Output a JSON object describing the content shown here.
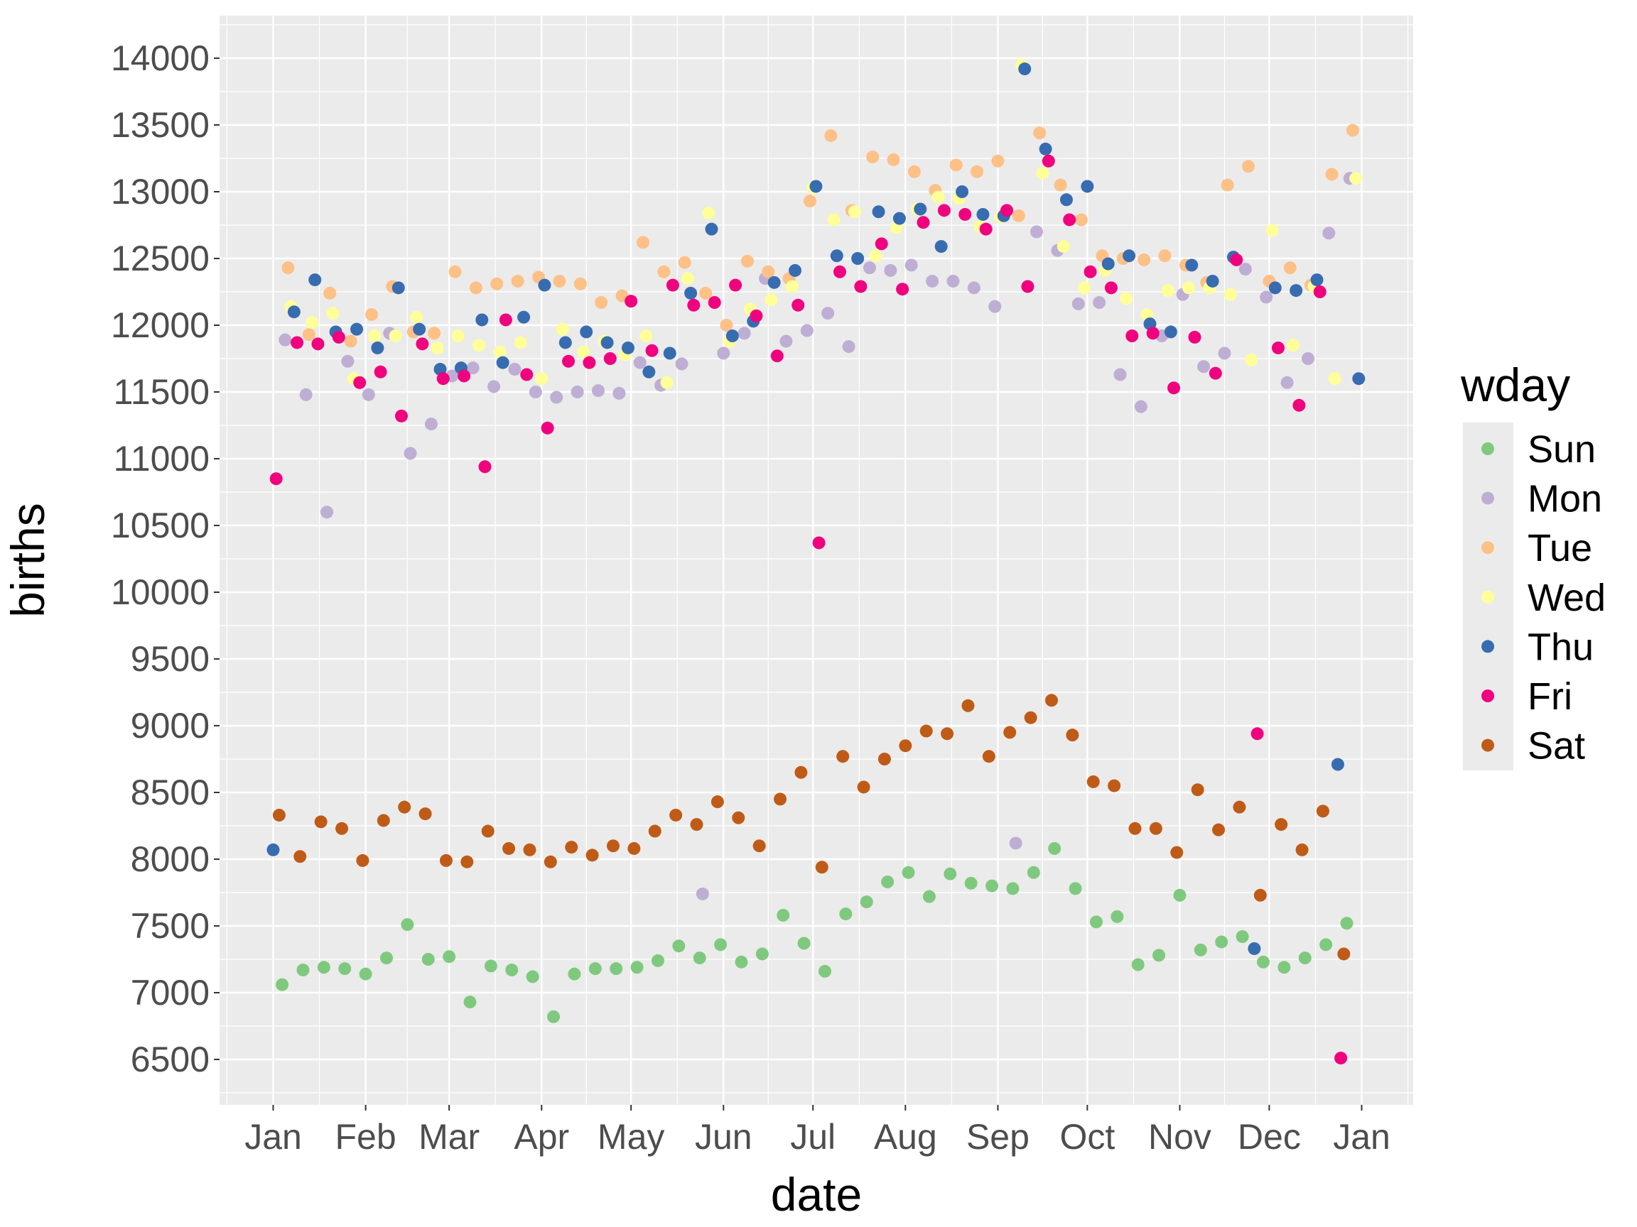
{
  "chart_data": {
    "type": "scatter",
    "title": "",
    "xlabel": "date",
    "ylabel": "births",
    "ylim": [
      6160,
      14320
    ],
    "y_ticks": [
      6500,
      7000,
      7500,
      8000,
      8500,
      9000,
      9500,
      10000,
      10500,
      11000,
      11500,
      12000,
      12500,
      13000,
      13500,
      14000
    ],
    "x_ticks": [
      {
        "label": "Jan",
        "day": 0
      },
      {
        "label": "Feb",
        "day": 31
      },
      {
        "label": "Mar",
        "day": 59
      },
      {
        "label": "Apr",
        "day": 90
      },
      {
        "label": "May",
        "day": 120
      },
      {
        "label": "Jun",
        "day": 151
      },
      {
        "label": "Jul",
        "day": 181
      },
      {
        "label": "Aug",
        "day": 212
      },
      {
        "label": "Sep",
        "day": 243
      },
      {
        "label": "Oct",
        "day": 273
      },
      {
        "label": "Nov",
        "day": 304
      },
      {
        "label": "Dec",
        "day": 334
      },
      {
        "label": "Jan",
        "day": 365
      }
    ],
    "grid": true,
    "legend": {
      "title": "wday",
      "placement": "right"
    },
    "x_start_date": "1970-01-01",
    "interval_days": 7,
    "series": [
      {
        "name": "Sun",
        "color": "#7FC97F",
        "first_day": 3,
        "values": [
          7060,
          7170,
          7190,
          7180,
          7140,
          7260,
          7510,
          7250,
          7270,
          6930,
          7200,
          7170,
          7120,
          6820,
          7140,
          7180,
          7180,
          7190,
          7240,
          7350,
          7260,
          7360,
          7230,
          7290,
          7580,
          7370,
          7160,
          7590,
          7680,
          7830,
          7900,
          7720,
          7890,
          7820,
          7800,
          7780,
          7900,
          8080,
          7780,
          7530,
          7570,
          7210,
          7280,
          7730,
          7320,
          7380,
          7420,
          7230,
          7190,
          7260,
          7360,
          7520
        ]
      },
      {
        "name": "Mon",
        "color": "#BEAED4",
        "first_day": 4,
        "values": [
          11890,
          11480,
          10600,
          11730,
          11480,
          11940,
          11040,
          11260,
          11620,
          11680,
          11540,
          11670,
          11500,
          11460,
          11500,
          11510,
          11490,
          11720,
          11550,
          11710,
          7740,
          11790,
          11940,
          12350,
          11880,
          11960,
          12090,
          11840,
          12430,
          12410,
          12450,
          12330,
          12330,
          12280,
          12140,
          8120,
          12700,
          12560,
          12160,
          12170,
          11630,
          11390,
          11920,
          12230,
          11690,
          11790,
          12420,
          12210,
          11570,
          11750,
          12690,
          13100
        ]
      },
      {
        "name": "Tue",
        "color": "#FDC086",
        "first_day": 5,
        "values": [
          12430,
          11930,
          12240,
          11880,
          12080,
          12290,
          11950,
          11940,
          12400,
          12280,
          12310,
          12330,
          12360,
          12330,
          12310,
          12170,
          12220,
          12620,
          12400,
          12470,
          12240,
          12000,
          12480,
          12400,
          12350,
          12930,
          13420,
          12860,
          13260,
          13240,
          13150,
          13010,
          13200,
          13150,
          13230,
          12820,
          13440,
          13050,
          12790,
          12520,
          12500,
          12490,
          12520,
          12450,
          12320,
          13050,
          13190,
          12330,
          12430,
          12300,
          13130,
          13460
        ]
      },
      {
        "name": "Wed",
        "color": "#FFFF99",
        "first_day": 6,
        "values": [
          12140,
          12020,
          12090,
          11600,
          11920,
          11920,
          12060,
          11830,
          11920,
          11850,
          11800,
          11870,
          11600,
          11970,
          11800,
          11880,
          11780,
          11920,
          11570,
          12350,
          12840,
          11880,
          12120,
          12190,
          12290,
          13030,
          12790,
          12850,
          12520,
          12730,
          12870,
          12960,
          12950,
          12740,
          12810,
          13950,
          13140,
          12590,
          12280,
          12410,
          12200,
          12080,
          12260,
          12280,
          12280,
          12230,
          11740,
          12710,
          11850,
          12290,
          11600,
          13100
        ]
      },
      {
        "name": "Thu",
        "color": "#386CB0",
        "first_day": 0,
        "values": [
          8070,
          12100,
          12340,
          11950,
          11970,
          11830,
          12280,
          11970,
          11670,
          11680,
          12040,
          11720,
          12060,
          12300,
          11870,
          11950,
          11870,
          11830,
          11650,
          11790,
          12240,
          12720,
          11920,
          12030,
          12320,
          12410,
          13040,
          12520,
          12500,
          12850,
          12800,
          12870,
          12590,
          13000,
          12830,
          12820,
          13920,
          13320,
          12940,
          13040,
          12460,
          12520,
          12010,
          11950,
          12450,
          12330,
          12510,
          7330,
          12280,
          12260,
          12340,
          8710,
          11600
        ]
      },
      {
        "name": "Fri",
        "color": "#F0027F",
        "first_day": 1,
        "values": [
          10850,
          11870,
          11860,
          11910,
          11570,
          11650,
          11320,
          11860,
          11600,
          11620,
          10940,
          12040,
          11630,
          11230,
          11730,
          11720,
          11750,
          12180,
          11810,
          12300,
          12150,
          12170,
          12300,
          12070,
          11770,
          12150,
          10370,
          12400,
          12290,
          12610,
          12270,
          12770,
          12860,
          12830,
          12720,
          12860,
          12290,
          13230,
          12790,
          12400,
          12280,
          11920,
          11940,
          11530,
          11910,
          11640,
          12490,
          8940,
          11830,
          11400,
          12250,
          6510
        ]
      },
      {
        "name": "Sat",
        "color": "#BF5B17",
        "first_day": 2,
        "values": [
          8330,
          8020,
          8280,
          8230,
          7990,
          8290,
          8390,
          8340,
          7990,
          7980,
          8210,
          8080,
          8070,
          7980,
          8090,
          8030,
          8100,
          8080,
          8210,
          8330,
          8260,
          8430,
          8310,
          8100,
          8450,
          8650,
          7940,
          8770,
          8540,
          8750,
          8850,
          8960,
          8940,
          9150,
          8770,
          8950,
          9060,
          9190,
          8930,
          8580,
          8550,
          8230,
          8230,
          8050,
          8520,
          8220,
          8390,
          7730,
          8260,
          8070,
          8360,
          7290
        ]
      }
    ]
  }
}
